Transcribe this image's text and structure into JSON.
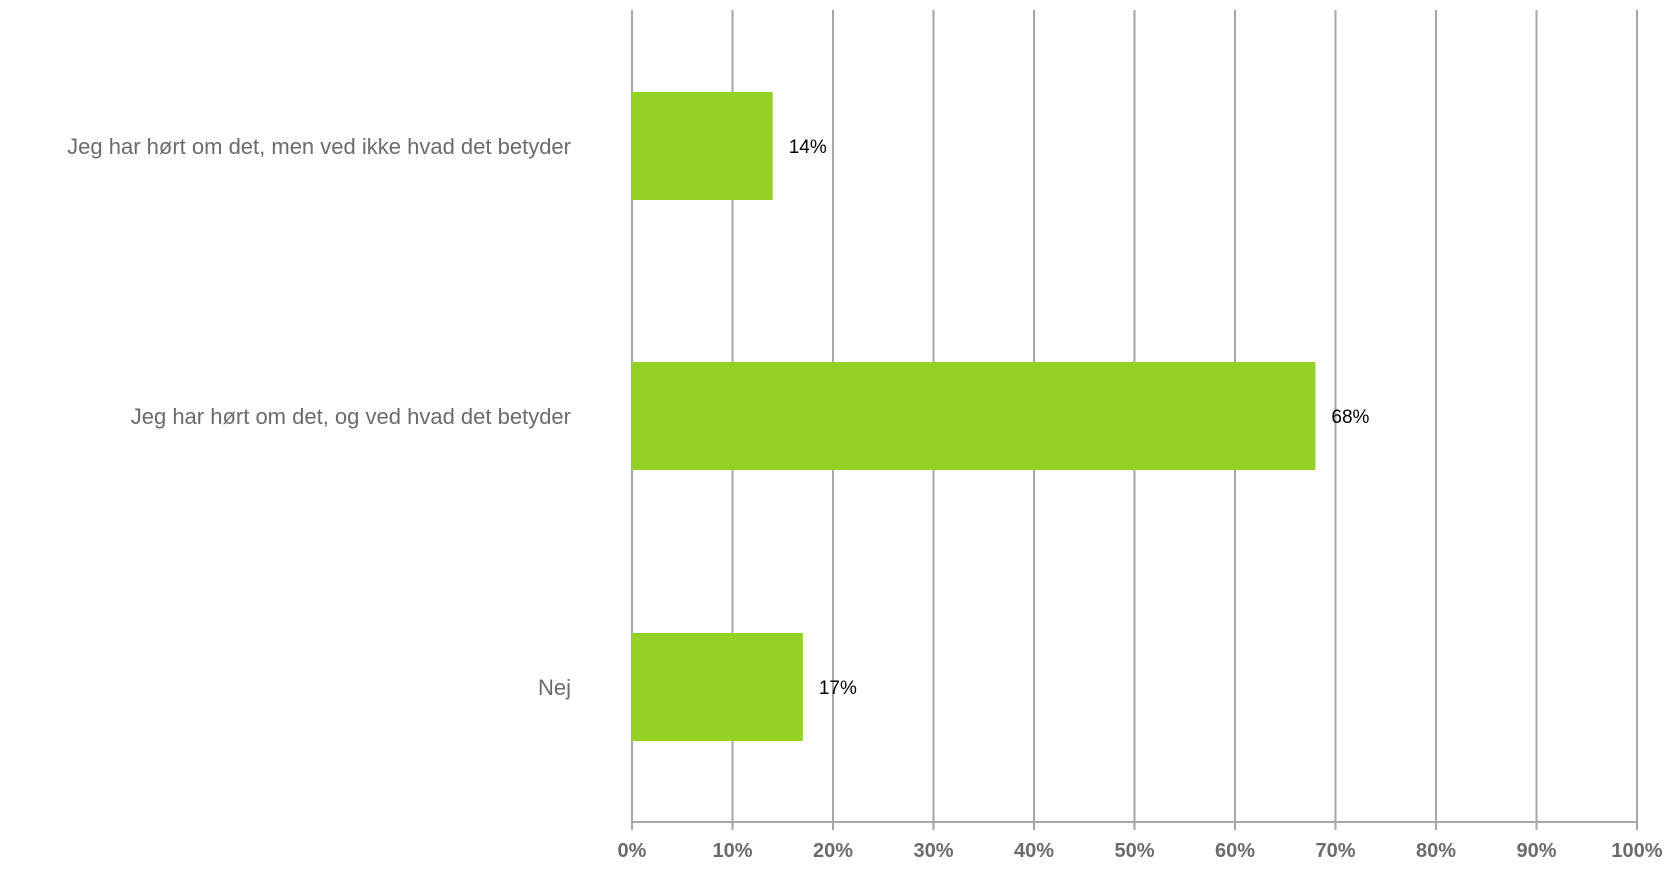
{
  "chart_data": {
    "type": "bar",
    "orientation": "horizontal",
    "categories": [
      "Jeg har hørt om det, men ved ikke hvad det betyder",
      "Jeg har hørt om det, og ved hvad det betyder",
      "Nej"
    ],
    "values": [
      14,
      68,
      17
    ],
    "value_labels": [
      "14%",
      "68%",
      "17%"
    ],
    "xlim": [
      0,
      100
    ],
    "xticks": [
      0,
      10,
      20,
      30,
      40,
      50,
      60,
      70,
      80,
      90,
      100
    ],
    "xtick_labels": [
      "0%",
      "10%",
      "20%",
      "30%",
      "40%",
      "50%",
      "60%",
      "70%",
      "80%",
      "90%",
      "100%"
    ],
    "grid": true,
    "legend": "none",
    "colors": {
      "bar": "#93d125",
      "grid": "#a6a6a6",
      "category_text": "#6b6b6b",
      "tick_text": "#6b6b6b",
      "value_text": "#000000"
    }
  }
}
